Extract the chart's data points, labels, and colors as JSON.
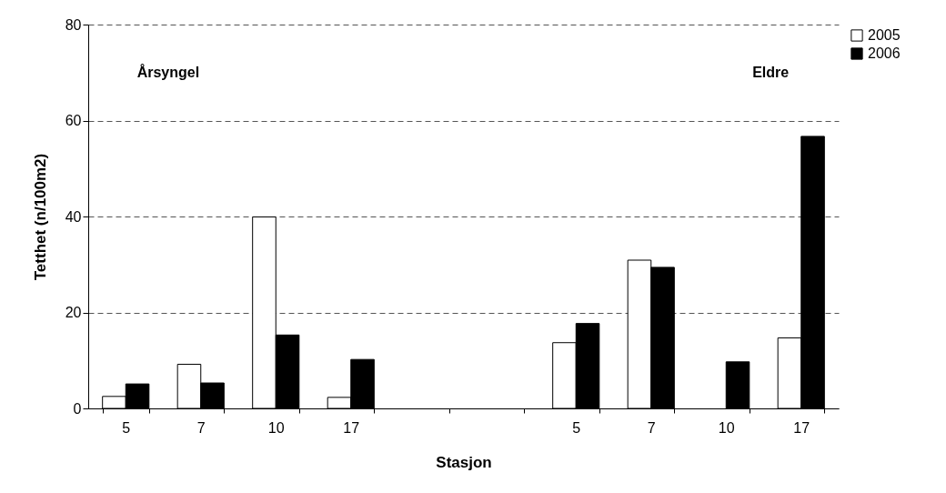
{
  "chart_data": {
    "type": "bar",
    "xlabel": "Stasjon",
    "ylabel": "Tetthet (n/100m2)",
    "categories": [
      "5",
      "7",
      "10",
      "17",
      null,
      null,
      "5",
      "7",
      "10",
      "17"
    ],
    "series": [
      {
        "name": "2005",
        "color": "#ffffff",
        "values": [
          2.5,
          9.2,
          39.9,
          2.3,
          null,
          null,
          13.7,
          30.9,
          null,
          14.7
        ]
      },
      {
        "name": "2006",
        "color": "#000000",
        "values": [
          5.1,
          5.3,
          15.3,
          10.2,
          null,
          null,
          17.7,
          29.4,
          9.7,
          56.7
        ]
      }
    ],
    "ylim": [
      0,
      80
    ],
    "yticks": [
      0,
      20,
      40,
      60,
      80
    ],
    "grid": "y",
    "legend": "right",
    "annotations": [
      "Årsyngel",
      "Eldre"
    ]
  }
}
